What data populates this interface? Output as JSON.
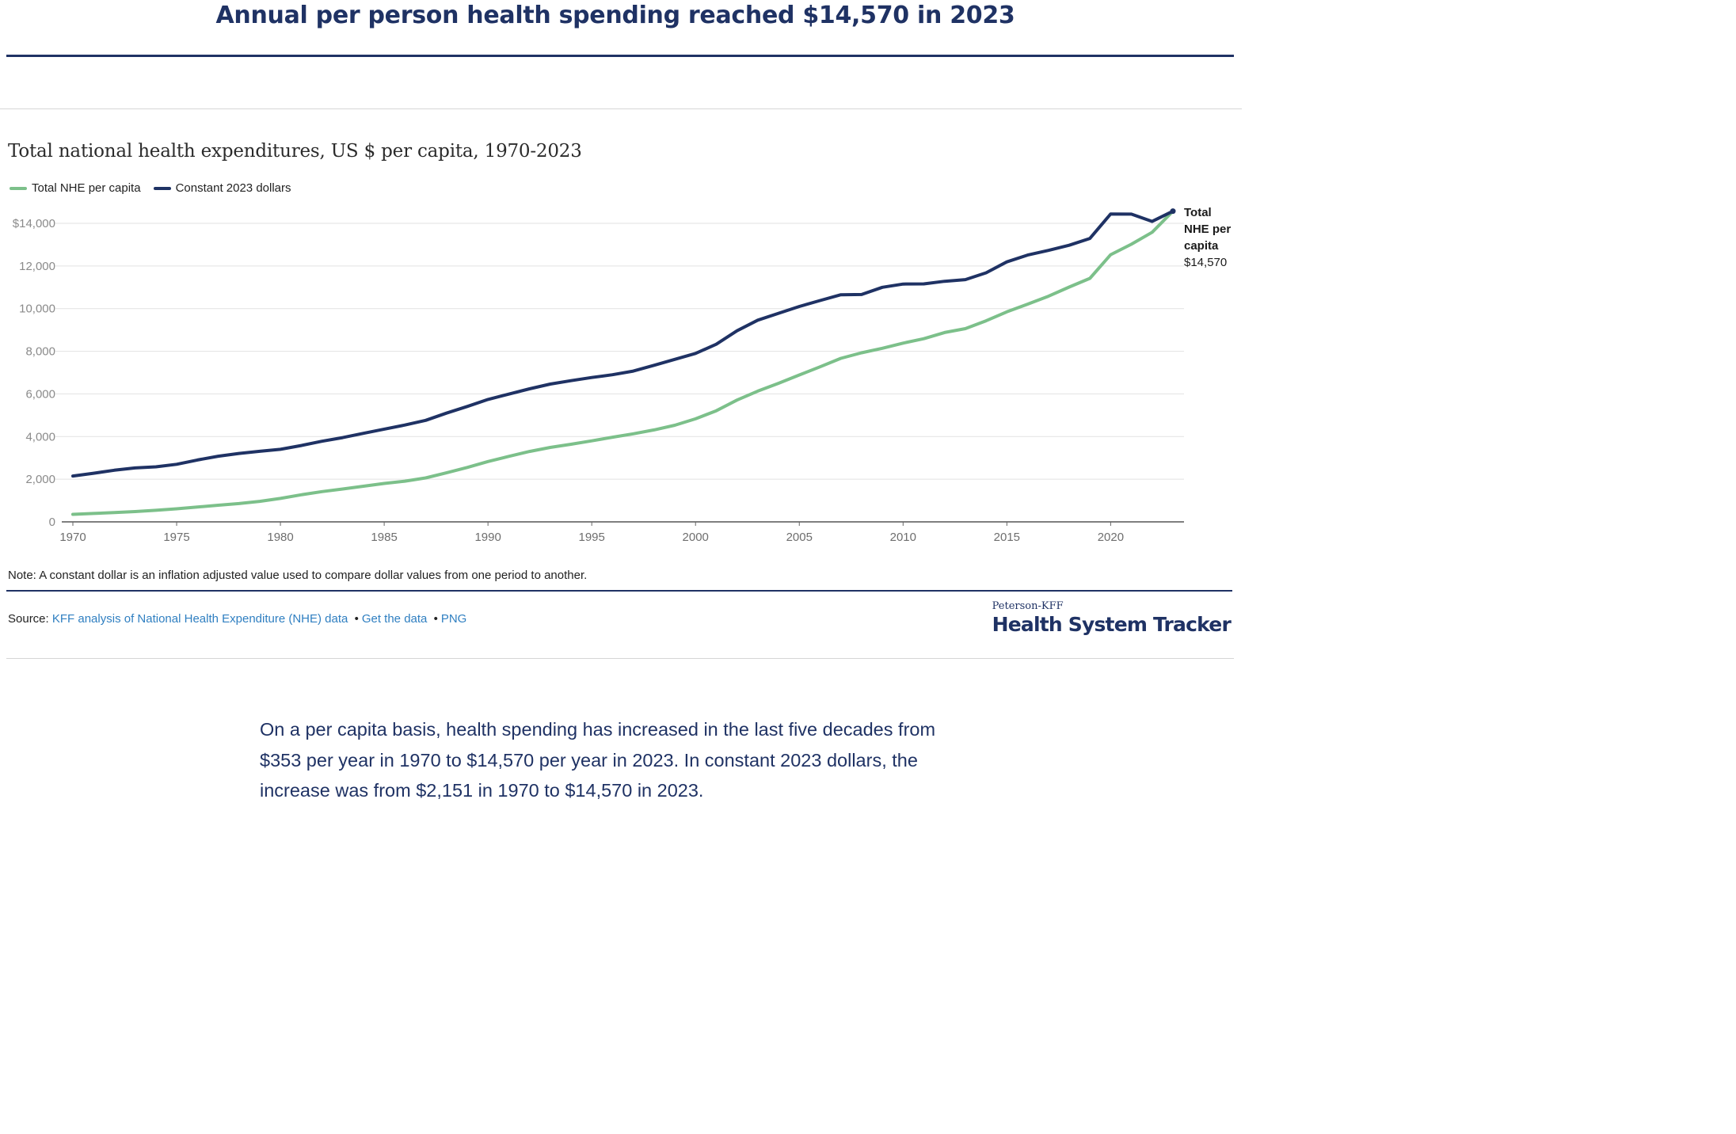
{
  "headline": "Annual per person health spending reached $14,570 in 2023",
  "chart_title": "Total national health expenditures, US $ per capita, 1970-2023",
  "legend": {
    "series1": "Total NHE per capita",
    "series2": "Constant 2023 dollars"
  },
  "colors": {
    "nominal": "#7cc08a",
    "constant": "#1f3264",
    "link": "#2f7fc1",
    "brand": "#1f3264"
  },
  "end_label": {
    "label": "Total NHE per capita",
    "value": "$14,570"
  },
  "note": "Note: A constant dollar is an inflation adjusted value used to compare dollar values from one period to another.",
  "source": {
    "prefix": "Source:",
    "link1": "KFF analysis of National Health Expenditure (NHE) data",
    "sep": "•",
    "link2": "Get the data",
    "link3": "PNG"
  },
  "brand": {
    "top": "Peterson-KFF",
    "main": "Health System Tracker"
  },
  "body_text": "On a per capita basis, health spending has increased in the last five decades from $353 per year in 1970 to $14,570 per year in 2023. In constant 2023 dollars, the increase was from $2,151 in 1970 to $14,570 in 2023.",
  "chart_data": {
    "type": "line",
    "title": "Total national health expenditures, US $ per capita, 1970-2023",
    "x_range": [
      1970,
      2023
    ],
    "y_range": [
      0,
      14000
    ],
    "y_ticks": [
      0,
      2000,
      4000,
      6000,
      8000,
      10000,
      12000,
      14000
    ],
    "y_tick_labels": [
      "0",
      "2,000",
      "4,000",
      "6,000",
      "8,000",
      "10,000",
      "12,000",
      "$14,000"
    ],
    "x_ticks": [
      1970,
      1975,
      1980,
      1985,
      1990,
      1995,
      2000,
      2005,
      2010,
      2015,
      2020
    ],
    "x_tick_labels": [
      "1970",
      "1975",
      "1980",
      "1985",
      "1990",
      "1995",
      "2000",
      "2005",
      "2010",
      "2015",
      "2020"
    ],
    "grid": true,
    "legend_position": "top-left",
    "years": [
      1970,
      1971,
      1972,
      1973,
      1974,
      1975,
      1976,
      1977,
      1978,
      1979,
      1980,
      1981,
      1982,
      1983,
      1984,
      1985,
      1986,
      1987,
      1988,
      1989,
      1990,
      1991,
      1992,
      1993,
      1994,
      1995,
      1996,
      1997,
      1998,
      1999,
      2000,
      2001,
      2002,
      2003,
      2004,
      2005,
      2006,
      2007,
      2008,
      2009,
      2010,
      2011,
      2012,
      2013,
      2014,
      2015,
      2016,
      2017,
      2018,
      2019,
      2020,
      2021,
      2022,
      2023
    ],
    "series": [
      {
        "name": "Total NHE per capita",
        "color": "#7cc08a",
        "values": [
          353,
          393,
          440,
          484,
          541,
          613,
          693,
          778,
          857,
          961,
          1100,
          1270,
          1420,
          1540,
          1670,
          1800,
          1910,
          2060,
          2300,
          2550,
          2830,
          3070,
          3300,
          3490,
          3640,
          3800,
          3970,
          4130,
          4310,
          4530,
          4830,
          5210,
          5710,
          6130,
          6500,
          6890,
          7270,
          7670,
          7930,
          8140,
          8380,
          8590,
          8880,
          9060,
          9430,
          9850,
          10210,
          10580,
          11010,
          11420,
          12530,
          13020,
          13580,
          14570
        ]
      },
      {
        "name": "Constant 2023 dollars",
        "color": "#1f3264",
        "values": [
          2151,
          2280,
          2420,
          2530,
          2580,
          2700,
          2900,
          3080,
          3210,
          3310,
          3400,
          3580,
          3780,
          3950,
          4150,
          4350,
          4540,
          4760,
          5100,
          5410,
          5740,
          5990,
          6240,
          6460,
          6620,
          6770,
          6900,
          7070,
          7340,
          7620,
          7900,
          8330,
          8960,
          9460,
          9780,
          10100,
          10380,
          10650,
          10660,
          11000,
          11150,
          11160,
          11280,
          11360,
          11680,
          12190,
          12510,
          12730,
          12970,
          13290,
          14440,
          14430,
          14090,
          14570
        ]
      }
    ]
  }
}
